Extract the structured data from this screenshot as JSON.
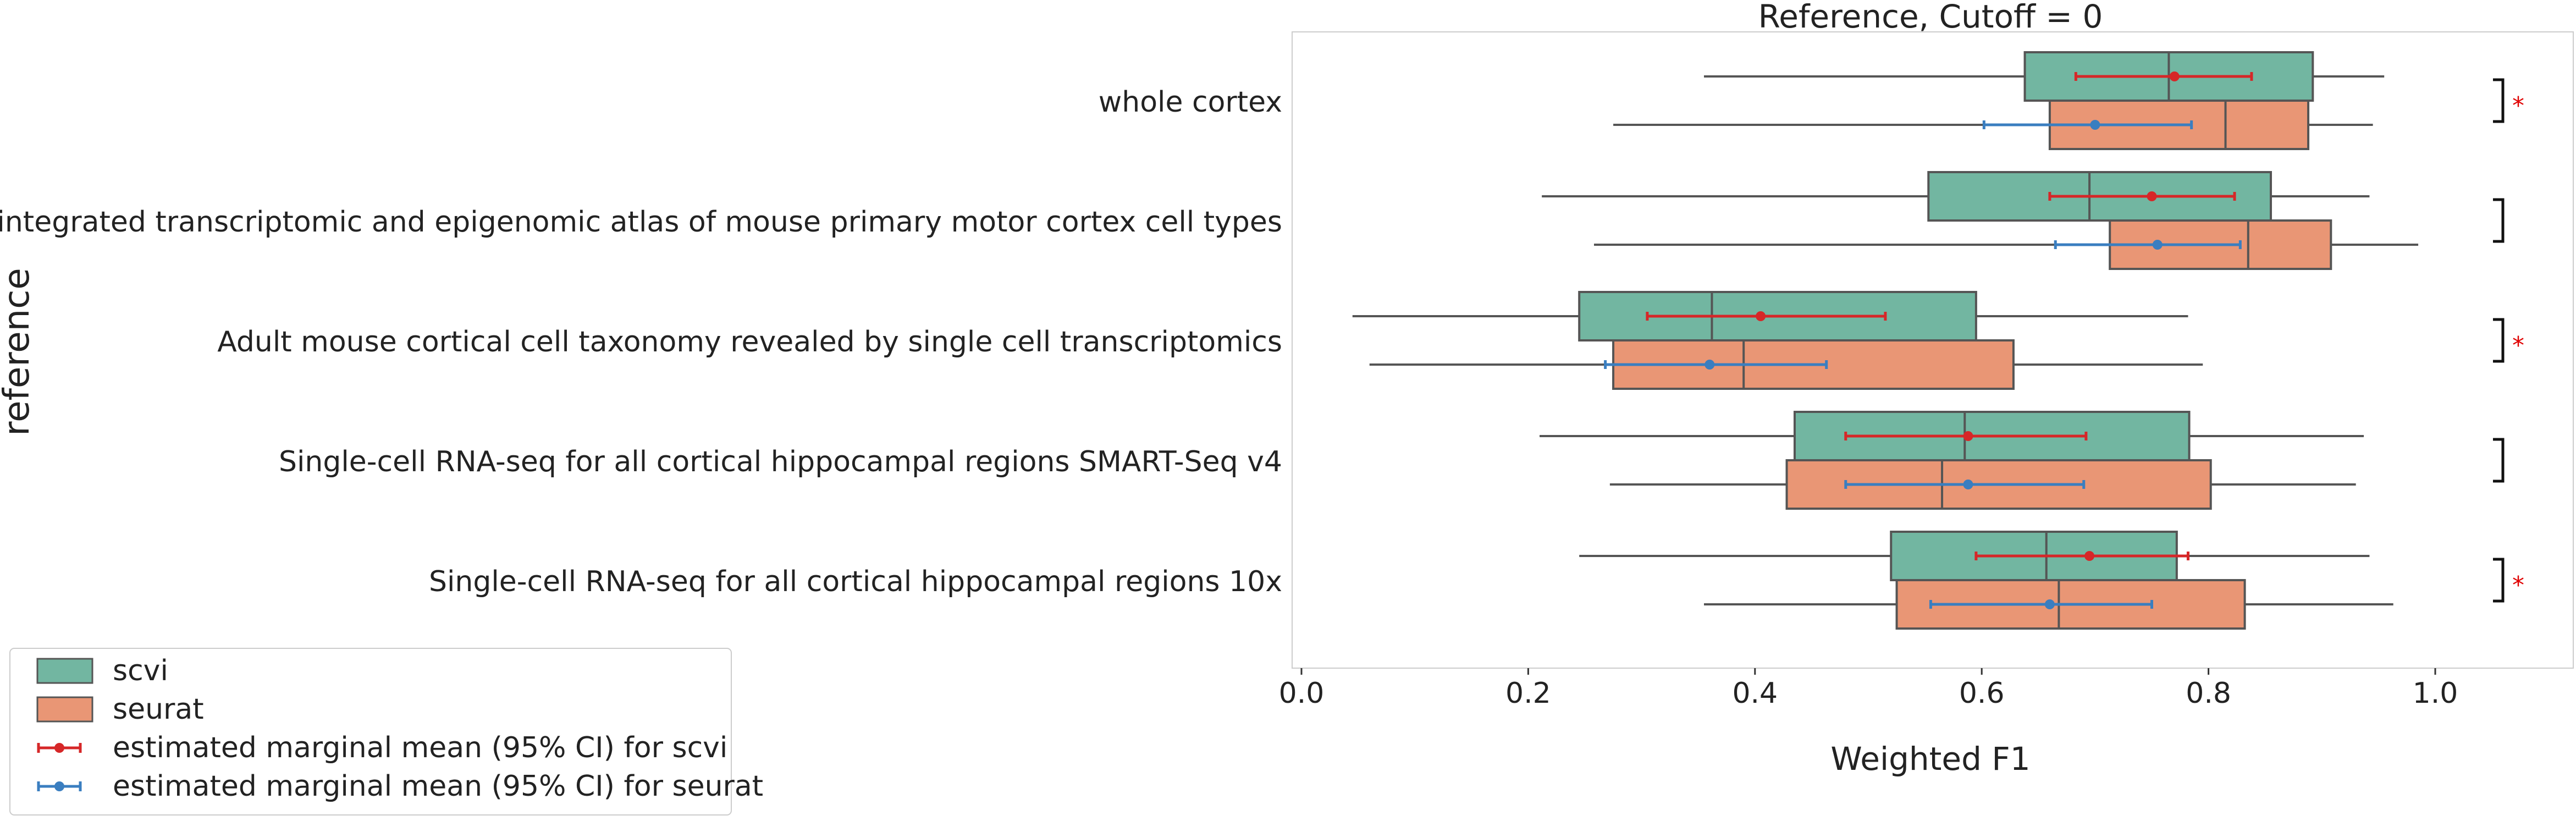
{
  "chart_data": {
    "type": "box",
    "title": "Reference, Cutoff = 0",
    "xlabel": "Weighted F1",
    "ylabel": "reference",
    "xlim": [
      0.0,
      1.0
    ],
    "xticks": [
      "0.0",
      "0.2",
      "0.4",
      "0.6",
      "0.8",
      "1.0"
    ],
    "grid": false,
    "legend_position": "lower-left",
    "categories": [
      "whole cortex",
      "An integrated transcriptomic and epigenomic atlas of mouse primary motor cortex cell types",
      "Adult mouse cortical cell taxonomy revealed by single cell transcriptomics",
      "Single-cell RNA-seq for all cortical  hippocampal regions SMART-Seq v4",
      "Single-cell RNA-seq for all cortical  hippocampal regions 10x"
    ],
    "series": [
      {
        "name": "scvi",
        "color": "#72b6a1",
        "boxes": [
          {
            "whisker_low": 0.355,
            "q1": 0.638,
            "median": 0.765,
            "q3": 0.892,
            "whisker_high": 0.955
          },
          {
            "whisker_low": 0.212,
            "q1": 0.553,
            "median": 0.695,
            "q3": 0.855,
            "whisker_high": 0.942
          },
          {
            "whisker_low": 0.045,
            "q1": 0.245,
            "median": 0.362,
            "q3": 0.595,
            "whisker_high": 0.782
          },
          {
            "whisker_low": 0.21,
            "q1": 0.435,
            "median": 0.585,
            "q3": 0.783,
            "whisker_high": 0.937
          },
          {
            "whisker_low": 0.245,
            "q1": 0.52,
            "median": 0.657,
            "q3": 0.772,
            "whisker_high": 0.942
          }
        ]
      },
      {
        "name": "seurat",
        "color": "#e99675",
        "boxes": [
          {
            "whisker_low": 0.275,
            "q1": 0.66,
            "median": 0.815,
            "q3": 0.888,
            "whisker_high": 0.945
          },
          {
            "whisker_low": 0.258,
            "q1": 0.713,
            "median": 0.835,
            "q3": 0.908,
            "whisker_high": 0.985
          },
          {
            "whisker_low": 0.06,
            "q1": 0.275,
            "median": 0.39,
            "q3": 0.628,
            "whisker_high": 0.795
          },
          {
            "whisker_low": 0.272,
            "q1": 0.428,
            "median": 0.565,
            "q3": 0.802,
            "whisker_high": 0.93
          },
          {
            "whisker_low": 0.355,
            "q1": 0.525,
            "median": 0.668,
            "q3": 0.832,
            "whisker_high": 0.963
          }
        ]
      }
    ],
    "estimated_means": [
      {
        "name": "estimated marginal mean (95% CI) for scvi",
        "color": "#d62728",
        "points": [
          {
            "mean": 0.77,
            "ci_low": 0.683,
            "ci_high": 0.838
          },
          {
            "mean": 0.75,
            "ci_low": 0.66,
            "ci_high": 0.823
          },
          {
            "mean": 0.405,
            "ci_low": 0.305,
            "ci_high": 0.515
          },
          {
            "mean": 0.588,
            "ci_low": 0.48,
            "ci_high": 0.692
          },
          {
            "mean": 0.695,
            "ci_low": 0.595,
            "ci_high": 0.782
          }
        ]
      },
      {
        "name": "estimated marginal mean (95% CI) for seurat",
        "color": "#3a7ec0",
        "points": [
          {
            "mean": 0.7,
            "ci_low": 0.602,
            "ci_high": 0.785
          },
          {
            "mean": 0.755,
            "ci_low": 0.665,
            "ci_high": 0.828
          },
          {
            "mean": 0.36,
            "ci_low": 0.268,
            "ci_high": 0.463
          },
          {
            "mean": 0.588,
            "ci_low": 0.48,
            "ci_high": 0.69
          },
          {
            "mean": 0.66,
            "ci_low": 0.555,
            "ci_high": 0.75
          }
        ]
      }
    ],
    "significance": [
      {
        "marker": "*"
      },
      {
        "marker": ""
      },
      {
        "marker": "*"
      },
      {
        "marker": ""
      },
      {
        "marker": "*"
      }
    ]
  }
}
